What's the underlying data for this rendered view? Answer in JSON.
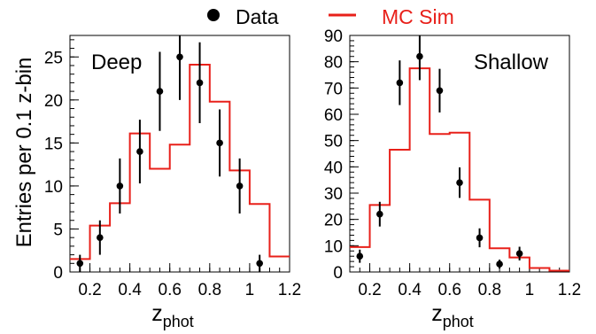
{
  "legend": {
    "data_label": "Data",
    "mc_label": "MC Sim",
    "data_color": "#000000",
    "mc_color": "#e8201a"
  },
  "y_label": "Entries per 0.1 z-bin",
  "chart_data": [
    {
      "type": "histogram_with_points",
      "panel_label": "Deep",
      "xlabel": "z",
      "xlabel_sub": "phot",
      "ylabel": "Entries per 0.1 z-bin",
      "xlim": [
        0.1,
        1.2
      ],
      "ylim": [
        0,
        27.5
      ],
      "x_ticks": [
        0.2,
        0.4,
        0.6,
        0.8,
        1,
        1.2
      ],
      "x_tick_labels": [
        "0.2",
        "0.4",
        "0.6",
        "0.8",
        "1",
        "1.2"
      ],
      "y_ticks": [
        0,
        5,
        10,
        15,
        20,
        25
      ],
      "y_tick_labels": [
        "0",
        "5",
        "10",
        "15",
        "20",
        "25"
      ],
      "mc_bin_edges": [
        0.1,
        0.2,
        0.3,
        0.4,
        0.5,
        0.6,
        0.7,
        0.8,
        0.9,
        1.0,
        1.1,
        1.2
      ],
      "mc_values": [
        1.5,
        5.4,
        8.0,
        16.1,
        12.0,
        14.8,
        24.1,
        19.8,
        11.8,
        7.9,
        1.8
      ],
      "data_points": [
        {
          "x": 0.15,
          "y": 1,
          "yerr": 1
        },
        {
          "x": 0.25,
          "y": 4,
          "yerr": 2
        },
        {
          "x": 0.35,
          "y": 10,
          "yerr": 3.2
        },
        {
          "x": 0.45,
          "y": 14,
          "yerr": 3.7
        },
        {
          "x": 0.55,
          "y": 21,
          "yerr": 4.6
        },
        {
          "x": 0.65,
          "y": 25,
          "yerr": 5
        },
        {
          "x": 0.75,
          "y": 22,
          "yerr": 4.7
        },
        {
          "x": 0.85,
          "y": 15,
          "yerr": 3.9
        },
        {
          "x": 0.95,
          "y": 10,
          "yerr": 3.2
        },
        {
          "x": 1.05,
          "y": 1,
          "yerr": 1
        }
      ]
    },
    {
      "type": "histogram_with_points",
      "panel_label": "Shallow",
      "xlabel": "z",
      "xlabel_sub": "phot",
      "xlim": [
        0.1,
        1.2
      ],
      "ylim": [
        0,
        90
      ],
      "x_ticks": [
        0.2,
        0.4,
        0.6,
        0.8,
        1,
        1.2
      ],
      "x_tick_labels": [
        "0.2",
        "0.4",
        "0.6",
        "0.8",
        "1",
        "1.2"
      ],
      "y_ticks": [
        0,
        10,
        20,
        30,
        40,
        50,
        60,
        70,
        80,
        90
      ],
      "y_tick_labels": [
        "0",
        "10",
        "20",
        "30",
        "40",
        "50",
        "60",
        "70",
        "80",
        "90"
      ],
      "mc_bin_edges": [
        0.1,
        0.2,
        0.3,
        0.4,
        0.5,
        0.6,
        0.7,
        0.8,
        0.9,
        1.0,
        1.1,
        1.2
      ],
      "mc_values": [
        9.5,
        25.5,
        46.5,
        77.5,
        52.5,
        53.0,
        27.5,
        9.0,
        5.5,
        1.5,
        0.5
      ],
      "data_points": [
        {
          "x": 0.15,
          "y": 6,
          "yerr": 2.5
        },
        {
          "x": 0.25,
          "y": 22,
          "yerr": 4.7
        },
        {
          "x": 0.35,
          "y": 72,
          "yerr": 8.5
        },
        {
          "x": 0.45,
          "y": 82,
          "yerr": 9
        },
        {
          "x": 0.55,
          "y": 69,
          "yerr": 8.3
        },
        {
          "x": 0.65,
          "y": 34,
          "yerr": 5.8
        },
        {
          "x": 0.75,
          "y": 13,
          "yerr": 3.6
        },
        {
          "x": 0.85,
          "y": 3,
          "yerr": 1.7
        },
        {
          "x": 0.95,
          "y": 7,
          "yerr": 2.6
        }
      ]
    }
  ]
}
